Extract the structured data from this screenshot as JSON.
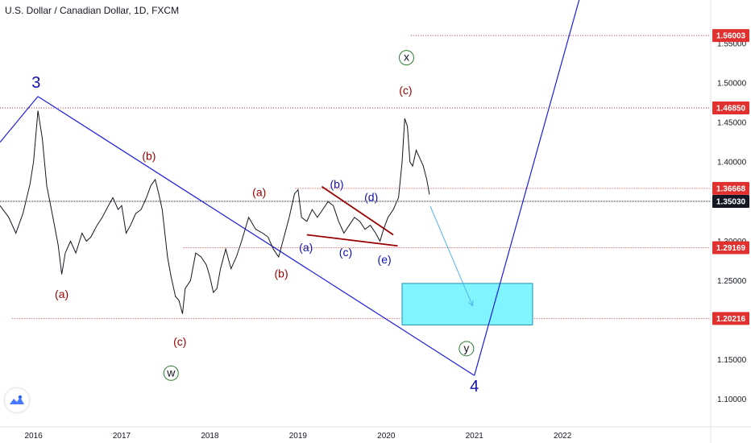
{
  "header": {
    "title": "U.S. Dollar / Canadian Dollar, 1D, FXCM"
  },
  "colors": {
    "price": "#131722",
    "wave_red": "#990000",
    "wave_blue": "#1010b0",
    "channel": "#1e1ee0",
    "level": "#e03030",
    "target_fill": "#80f4ff",
    "target_stroke": "#2090b0",
    "arrow": "#4fb5e6",
    "circle": "#2e7d32"
  },
  "icons": {
    "logo": "tradingview-logo-icon"
  },
  "chart_data": {
    "type": "line",
    "title": "U.S. Dollar / Canadian Dollar, 1D, FXCM",
    "x_labels": [
      "2016",
      "2017",
      "2018",
      "2019",
      "2020",
      "2021",
      "2022"
    ],
    "x_range": [
      2015.62,
      2023.68
    ],
    "y_range": [
      1.065,
      1.605
    ],
    "y_ticks": [
      "1.55000",
      "1.50000",
      "1.45000",
      "1.40000",
      "1.35000",
      "1.30000",
      "1.25000",
      "1.20000",
      "1.15000",
      "1.10000"
    ],
    "grid": false,
    "series": [
      {
        "values": [
          [
            2015.62,
            1.345
          ],
          [
            2015.72,
            1.33
          ],
          [
            2015.8,
            1.31
          ],
          [
            2015.88,
            1.335
          ],
          [
            2015.96,
            1.372
          ],
          [
            2016.0,
            1.4
          ],
          [
            2016.05,
            1.465
          ],
          [
            2016.1,
            1.43
          ],
          [
            2016.15,
            1.37
          ],
          [
            2016.22,
            1.33
          ],
          [
            2016.28,
            1.295
          ],
          [
            2016.32,
            1.258
          ],
          [
            2016.36,
            1.285
          ],
          [
            2016.42,
            1.3
          ],
          [
            2016.48,
            1.285
          ],
          [
            2016.55,
            1.31
          ],
          [
            2016.6,
            1.3
          ],
          [
            2016.65,
            1.305
          ],
          [
            2016.72,
            1.32
          ],
          [
            2016.78,
            1.33
          ],
          [
            2016.85,
            1.345
          ],
          [
            2016.9,
            1.355
          ],
          [
            2016.96,
            1.34
          ],
          [
            2017.0,
            1.345
          ],
          [
            2017.05,
            1.31
          ],
          [
            2017.1,
            1.32
          ],
          [
            2017.16,
            1.335
          ],
          [
            2017.22,
            1.34
          ],
          [
            2017.28,
            1.355
          ],
          [
            2017.33,
            1.37
          ],
          [
            2017.38,
            1.378
          ],
          [
            2017.42,
            1.36
          ],
          [
            2017.46,
            1.34
          ],
          [
            2017.52,
            1.28
          ],
          [
            2017.56,
            1.255
          ],
          [
            2017.61,
            1.23
          ],
          [
            2017.65,
            1.225
          ],
          [
            2017.69,
            1.208
          ],
          [
            2017.72,
            1.24
          ],
          [
            2017.78,
            1.25
          ],
          [
            2017.84,
            1.285
          ],
          [
            2017.9,
            1.28
          ],
          [
            2017.96,
            1.27
          ],
          [
            2018.0,
            1.255
          ],
          [
            2018.04,
            1.235
          ],
          [
            2018.08,
            1.24
          ],
          [
            2018.12,
            1.265
          ],
          [
            2018.18,
            1.29
          ],
          [
            2018.24,
            1.265
          ],
          [
            2018.3,
            1.28
          ],
          [
            2018.36,
            1.3
          ],
          [
            2018.44,
            1.33
          ],
          [
            2018.52,
            1.315
          ],
          [
            2018.6,
            1.31
          ],
          [
            2018.66,
            1.305
          ],
          [
            2018.72,
            1.29
          ],
          [
            2018.78,
            1.28
          ],
          [
            2018.84,
            1.305
          ],
          [
            2018.9,
            1.33
          ],
          [
            2018.96,
            1.36
          ],
          [
            2019.0,
            1.365
          ],
          [
            2019.04,
            1.33
          ],
          [
            2019.1,
            1.325
          ],
          [
            2019.16,
            1.34
          ],
          [
            2019.22,
            1.33
          ],
          [
            2019.28,
            1.34
          ],
          [
            2019.34,
            1.35
          ],
          [
            2019.4,
            1.345
          ],
          [
            2019.46,
            1.325
          ],
          [
            2019.52,
            1.31
          ],
          [
            2019.58,
            1.32
          ],
          [
            2019.64,
            1.33
          ],
          [
            2019.7,
            1.325
          ],
          [
            2019.76,
            1.315
          ],
          [
            2019.82,
            1.32
          ],
          [
            2019.88,
            1.31
          ],
          [
            2019.93,
            1.3
          ],
          [
            2019.97,
            1.315
          ],
          [
            2020.02,
            1.33
          ],
          [
            2020.08,
            1.34
          ],
          [
            2020.14,
            1.355
          ],
          [
            2020.18,
            1.4
          ],
          [
            2020.21,
            1.455
          ],
          [
            2020.24,
            1.445
          ],
          [
            2020.27,
            1.4
          ],
          [
            2020.3,
            1.395
          ],
          [
            2020.34,
            1.415
          ],
          [
            2020.38,
            1.405
          ],
          [
            2020.42,
            1.395
          ],
          [
            2020.46,
            1.378
          ],
          [
            2020.49,
            1.359
          ]
        ]
      }
    ],
    "levels": [
      {
        "value": 1.56003,
        "label": "1.56003",
        "from": 2020.28
      },
      {
        "value": 1.4685,
        "label": "1.46850",
        "from": 2015.62
      },
      {
        "value": 1.36668,
        "label": "1.36668",
        "from": 2018.97
      },
      {
        "value": 1.3503,
        "label": "1.35030",
        "from": 2015.62,
        "current": true
      },
      {
        "value": 1.29169,
        "label": "1.29169",
        "from": 2017.7
      },
      {
        "value": 1.20216,
        "label": "1.20216",
        "from": 2015.76
      }
    ],
    "channel_lines": [
      {
        "from": [
          2015.62,
          1.425
        ],
        "to": [
          2016.05,
          1.483
        ]
      },
      {
        "from": [
          2016.05,
          1.483
        ],
        "to": [
          2021.0,
          1.13
        ]
      },
      {
        "from": [
          2021.0,
          1.13
        ],
        "to": [
          2022.25,
          1.63
        ]
      }
    ],
    "triangle_lines": [
      {
        "from": [
          2019.27,
          1.369
        ],
        "to": [
          2020.08,
          1.308
        ]
      },
      {
        "from": [
          2019.1,
          1.308
        ],
        "to": [
          2020.13,
          1.294
        ]
      }
    ],
    "target_zone": {
      "x": [
        2020.18,
        2021.66
      ],
      "y": [
        1.194,
        1.2465
      ]
    },
    "projection_arrow": {
      "from": [
        2020.5,
        1.344
      ],
      "to": [
        2020.98,
        1.218
      ]
    },
    "annotations": [
      {
        "text": "3",
        "x": 2016.03,
        "y": 1.499,
        "color": "blue",
        "size": "big"
      },
      {
        "text": "(a)",
        "x": 2016.32,
        "y": 1.233,
        "color": "red"
      },
      {
        "text": "(b)",
        "x": 2017.31,
        "y": 1.408,
        "color": "red"
      },
      {
        "text": "(c)",
        "x": 2017.66,
        "y": 1.173,
        "color": "red"
      },
      {
        "text": "w",
        "x": 2017.56,
        "y": 1.133,
        "circle": true
      },
      {
        "text": "(a)",
        "x": 2018.56,
        "y": 1.362,
        "color": "red"
      },
      {
        "text": "(b)",
        "x": 2018.81,
        "y": 1.259,
        "color": "red"
      },
      {
        "text": "(a)",
        "x": 2019.09,
        "y": 1.292,
        "color": "blue"
      },
      {
        "text": "(b)",
        "x": 2019.44,
        "y": 1.372,
        "color": "blue"
      },
      {
        "text": "(c)",
        "x": 2019.54,
        "y": 1.286,
        "color": "blue"
      },
      {
        "text": "(d)",
        "x": 2019.83,
        "y": 1.356,
        "color": "blue"
      },
      {
        "text": "(e)",
        "x": 2019.98,
        "y": 1.277,
        "color": "blue"
      },
      {
        "text": "(c)",
        "x": 2020.22,
        "y": 1.491,
        "color": "red"
      },
      {
        "text": "x",
        "x": 2020.23,
        "y": 1.532,
        "circle": true
      },
      {
        "text": "y",
        "x": 2020.91,
        "y": 1.164,
        "circle": true
      },
      {
        "text": "4",
        "x": 2021.0,
        "y": 1.115,
        "color": "blue",
        "size": "big"
      }
    ]
  }
}
